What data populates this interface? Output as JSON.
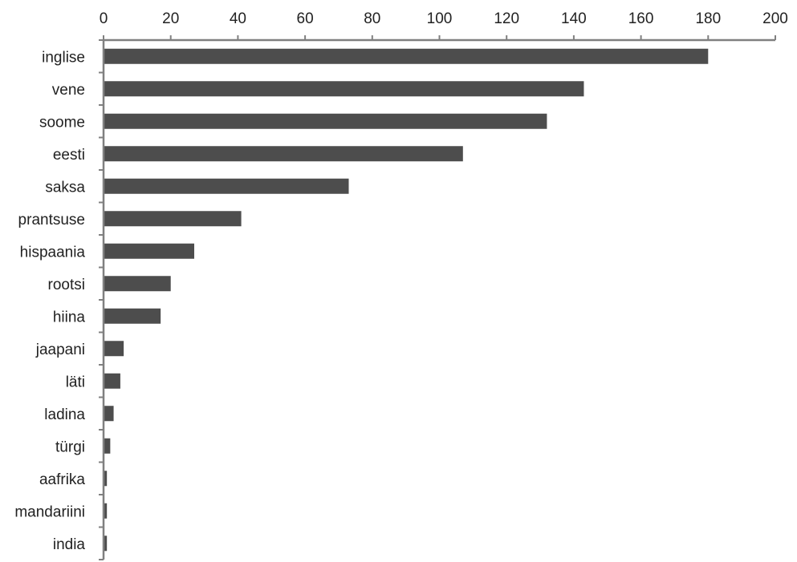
{
  "chart_data": {
    "type": "bar",
    "orientation": "horizontal",
    "title": "",
    "xlabel": "",
    "ylabel": "",
    "categories": [
      "inglise",
      "vene",
      "soome",
      "eesti",
      "saksa",
      "prantsuse",
      "hispaania",
      "rootsi",
      "hiina",
      "jaapani",
      "läti",
      "ladina",
      "türgi",
      "aafrika",
      "mandariini",
      "india"
    ],
    "values": [
      180,
      143,
      132,
      107,
      73,
      41,
      27,
      20,
      17,
      6,
      5,
      3,
      2,
      1,
      1,
      1
    ],
    "xlim": [
      0,
      200
    ],
    "xticks": [
      "0",
      "20",
      "40",
      "60",
      "80",
      "100",
      "120",
      "140",
      "160",
      "180",
      "200"
    ],
    "axis_position": "top",
    "grid": false,
    "legend": "none",
    "bar_color": "#4d4d4d",
    "axis_color": "#808080"
  }
}
